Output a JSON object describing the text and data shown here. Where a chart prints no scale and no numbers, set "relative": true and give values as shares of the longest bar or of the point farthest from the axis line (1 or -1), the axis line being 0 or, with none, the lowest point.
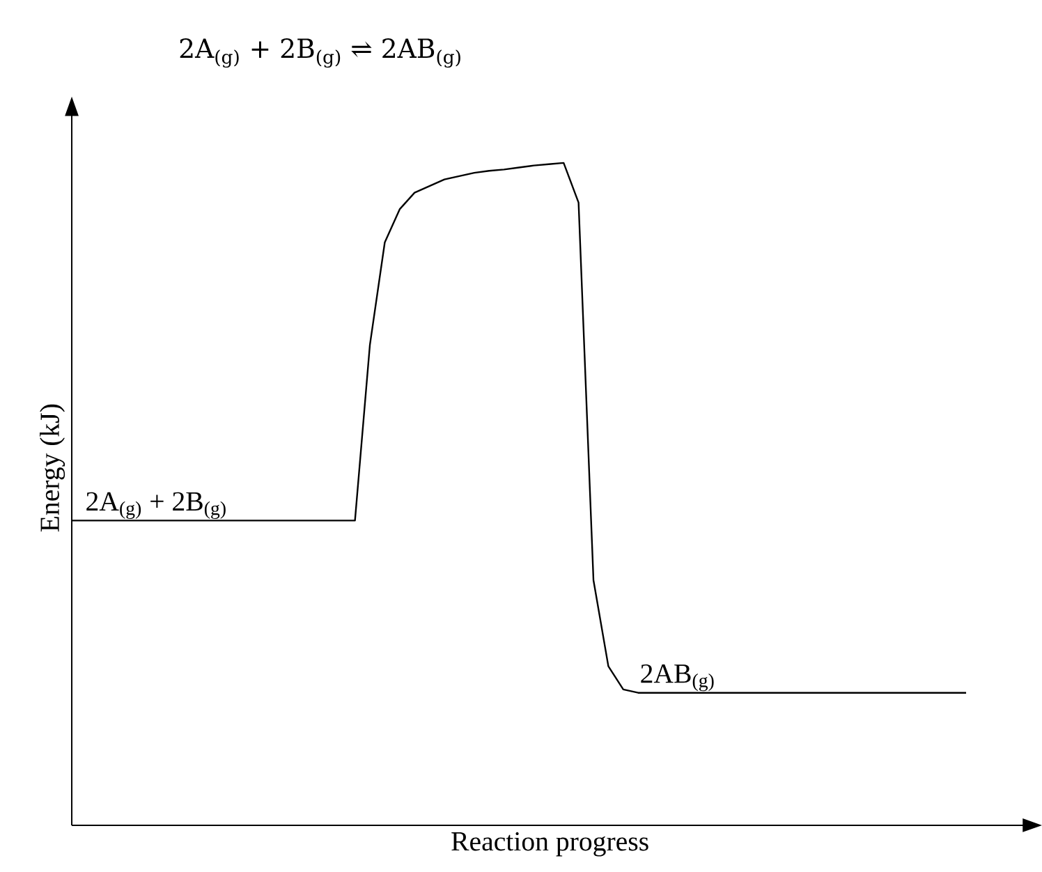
{
  "chart_data": {
    "type": "line",
    "relative": true,
    "title": "2A$_{(g)}$ + 2B$_{(g)}$ ⇌ 2AB$_{(g)}$",
    "xlabel": "Reaction progress",
    "ylabel": "Energy (kJ)",
    "categories": [
      null,
      null,
      null,
      null,
      null,
      null,
      null,
      null,
      null,
      null,
      null,
      null,
      null,
      null,
      null,
      null,
      null,
      null,
      null,
      null,
      null,
      null,
      null,
      null,
      null,
      null,
      null,
      null,
      null,
      null,
      null,
      null,
      null,
      null,
      null,
      null,
      null,
      null,
      null,
      null,
      null,
      null,
      null,
      null,
      null,
      null,
      null,
      null,
      null,
      null,
      null,
      null,
      null,
      null,
      null,
      null,
      null,
      null,
      null,
      null,
      null
    ],
    "values": [
      0.46,
      0.46,
      0.46,
      0.46,
      0.46,
      0.46,
      0.46,
      0.46,
      0.46,
      0.46,
      0.46,
      0.46,
      0.46,
      0.46,
      0.46,
      0.46,
      0.46,
      0.46,
      0.46,
      0.46,
      0.725,
      0.88,
      0.93,
      0.955,
      0.965,
      0.975,
      0.98,
      0.985,
      0.988,
      0.99,
      0.993,
      0.996,
      0.998,
      1.0,
      0.94,
      0.37,
      0.24,
      0.205,
      0.2,
      0.2,
      0.2,
      0.2,
      0.2,
      0.2,
      0.2,
      0.2,
      0.2,
      0.2,
      0.2,
      0.2,
      0.2,
      0.2,
      0.2,
      0.2,
      0.2,
      0.2,
      0.2,
      0.2,
      0.2,
      0.2,
      0.2
    ],
    "color": "#000000",
    "line_style": "solid",
    "marker": "none",
    "annotations": [
      "2A$_{(g)}$ + 2B$_{(g)}$",
      "2AB$_{(g)}$"
    ]
  }
}
